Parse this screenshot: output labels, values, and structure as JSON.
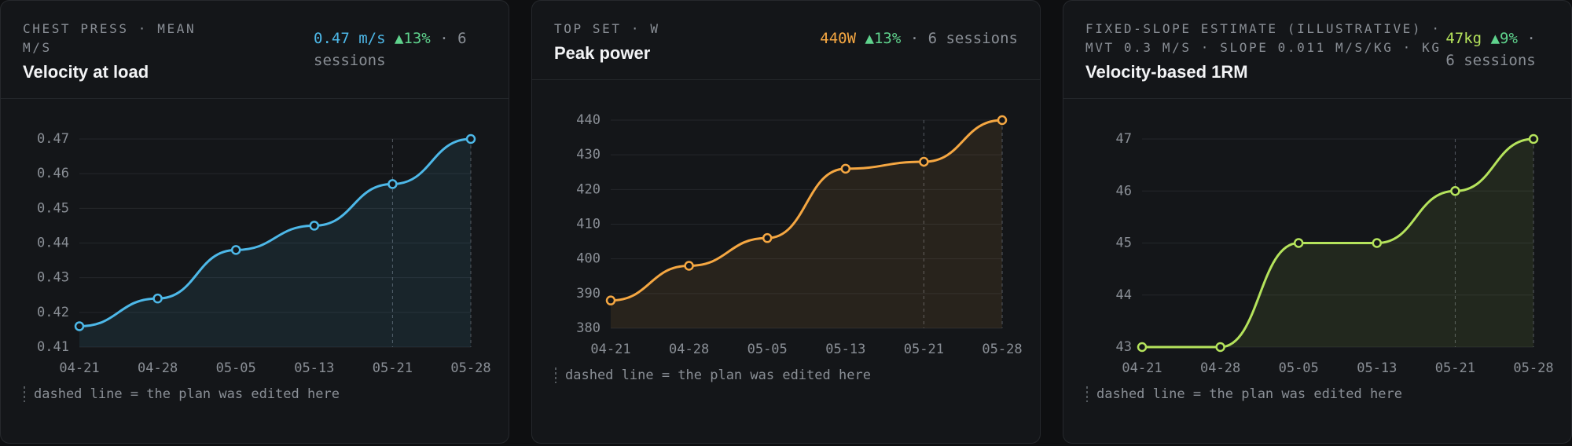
{
  "chart_data": [
    {
      "type": "line",
      "kicker": "CHEST PRESS · MEAN M/S",
      "title": "Velocity at load",
      "stat": "0.47 m/s",
      "change": "▲13%",
      "sessions": "· 6 sessions",
      "categories": [
        "04-21",
        "04-28",
        "05-05",
        "05-13",
        "05-21",
        "05-28"
      ],
      "values": [
        0.416,
        0.424,
        0.438,
        0.445,
        0.457,
        0.47
      ],
      "color": "#4db8e8",
      "change_color": "#5fd38d",
      "ylim": [
        0.41,
        0.47
      ],
      "yticks": [
        0.41,
        0.42,
        0.43,
        0.44,
        0.45,
        0.46,
        0.47
      ],
      "grid": true,
      "edited_at": "05-21",
      "annotation": "dashed line = the plan was edited here"
    },
    {
      "type": "line",
      "kicker": "TOP SET · W",
      "title": "Peak power",
      "stat": "440W",
      "change": "▲13%",
      "sessions": "· 6 sessions",
      "categories": [
        "04-21",
        "04-28",
        "05-05",
        "05-13",
        "05-21",
        "05-28"
      ],
      "values": [
        388,
        398,
        406,
        426,
        428,
        440
      ],
      "color": "#f5a742",
      "change_color": "#5fd38d",
      "ylim": [
        380,
        440
      ],
      "yticks": [
        380,
        390,
        400,
        410,
        420,
        430,
        440
      ],
      "grid": true,
      "edited_at": "05-21",
      "annotation": "dashed line = the plan was edited here"
    },
    {
      "type": "line",
      "kicker": "FIXED-SLOPE ESTIMATE (ILLUSTRATIVE) · MVT 0.3 M/S · SLOPE 0.011 M/S/KG · KG",
      "title": "Velocity-based 1RM",
      "stat": "47kg",
      "change": "▲9%",
      "sessions": "· 6 sessions",
      "categories": [
        "04-21",
        "04-28",
        "05-05",
        "05-13",
        "05-21",
        "05-28"
      ],
      "values": [
        43,
        43,
        45,
        45,
        46,
        47
      ],
      "color": "#b5e35c",
      "change_color": "#5fd38d",
      "ylim": [
        43,
        47
      ],
      "yticks": [
        43,
        44,
        45,
        46,
        47
      ],
      "grid": true,
      "edited_at": "05-21",
      "annotation": "dashed line = the plan was edited here"
    }
  ]
}
